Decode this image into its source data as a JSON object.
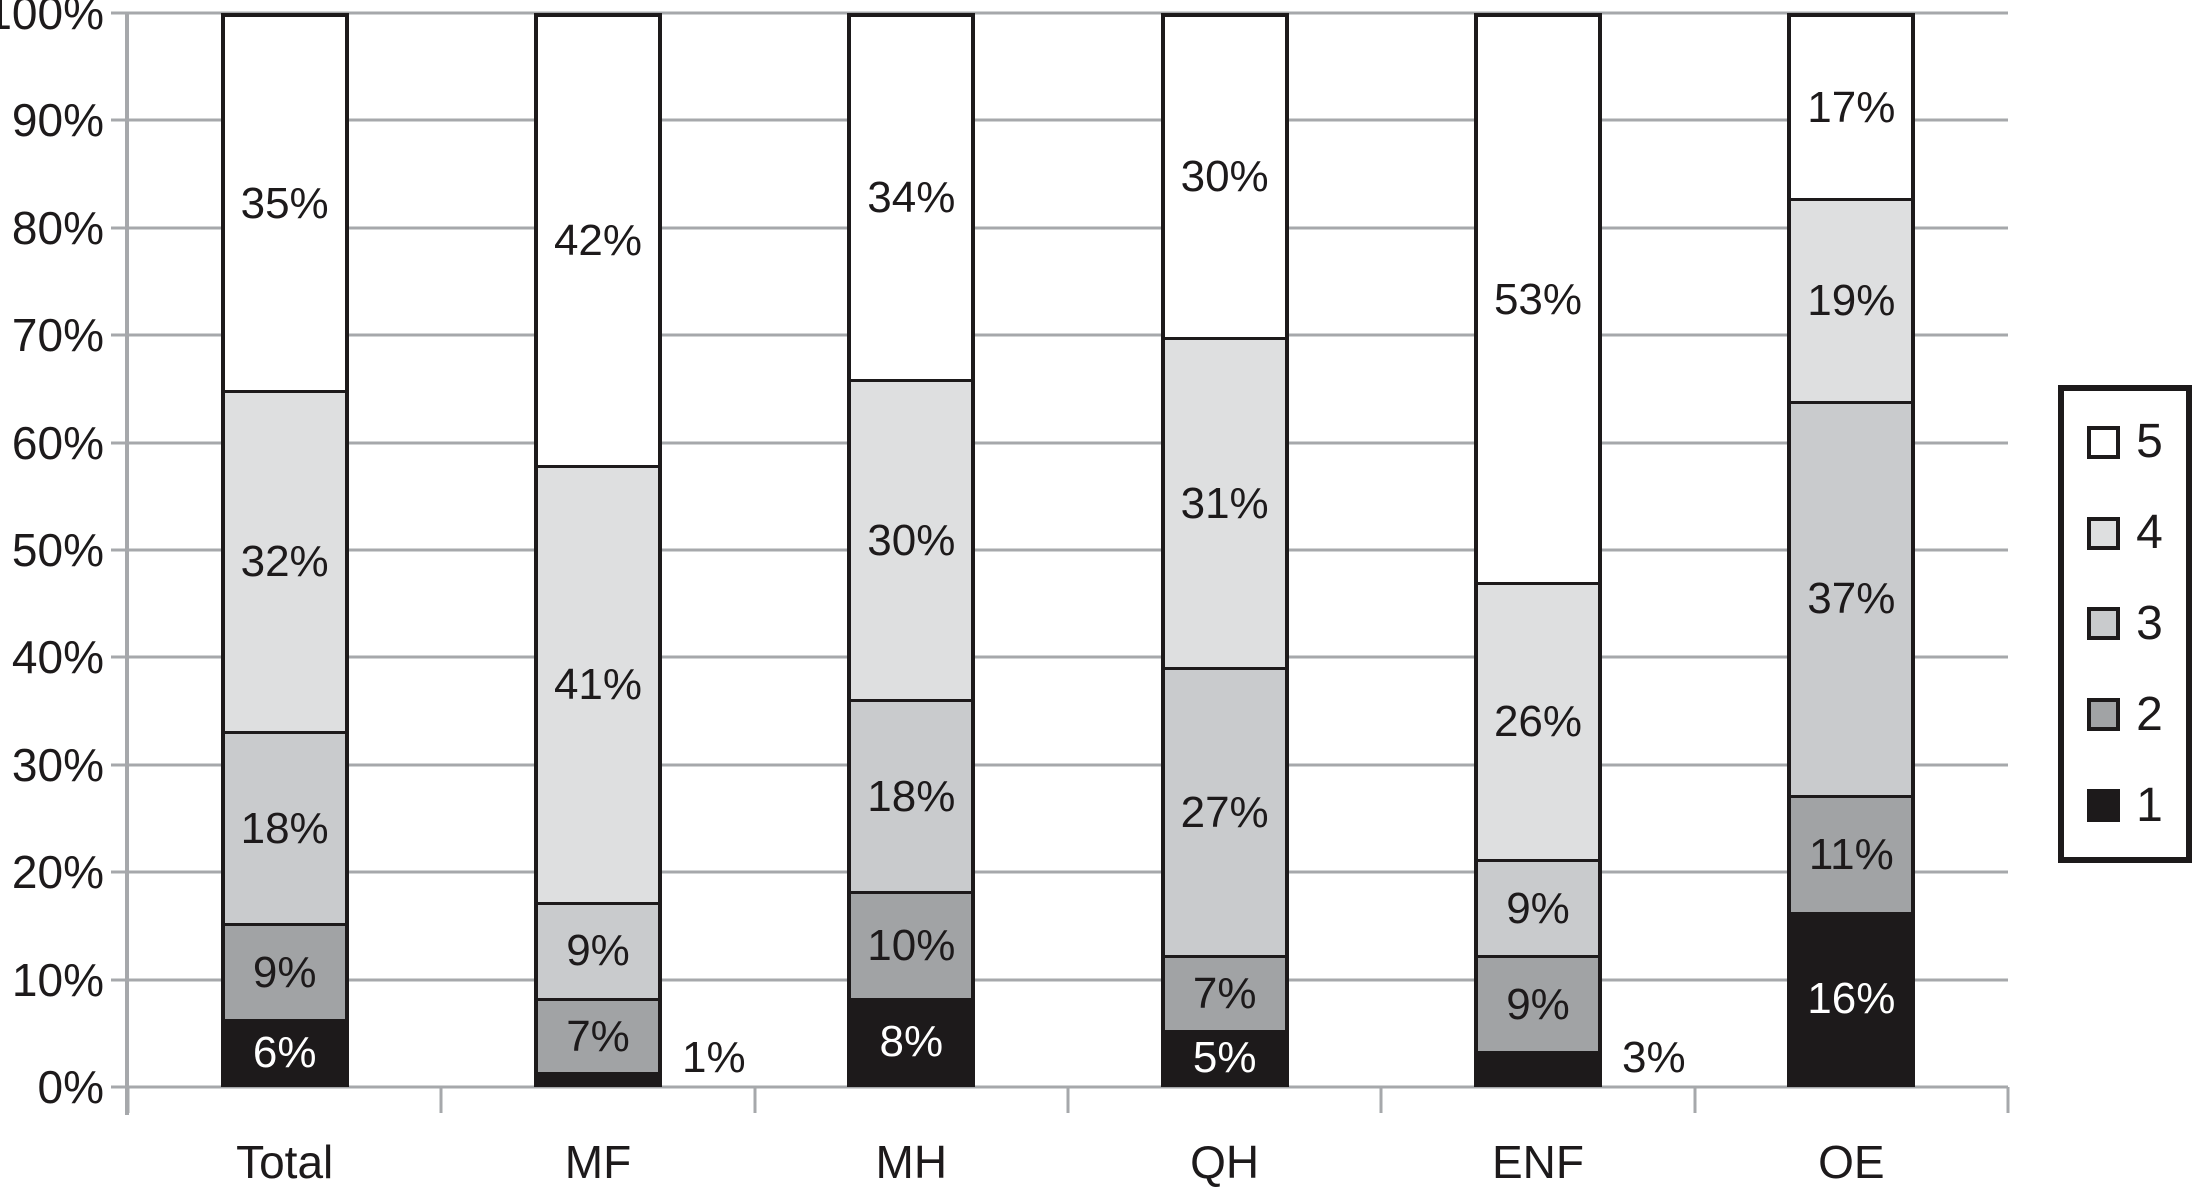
{
  "chart_data": {
    "type": "bar",
    "stacked": true,
    "percent": true,
    "title": "",
    "xlabel": "",
    "ylabel": "",
    "categories": [
      "Total",
      "MF",
      "MH",
      "QH",
      "ENF",
      "OE"
    ],
    "series": [
      {
        "name": "1",
        "color": "#1d1a1b",
        "text_color": "#ffffff",
        "values": [
          6,
          1,
          8,
          5,
          3,
          16
        ],
        "label_outside": [
          false,
          true,
          false,
          false,
          true,
          false
        ]
      },
      {
        "name": "2",
        "color": "#a1a3a5",
        "text_color": "#1d1a1b",
        "values": [
          9,
          7,
          10,
          7,
          9,
          11
        ],
        "label_outside": [
          false,
          false,
          false,
          false,
          false,
          false
        ]
      },
      {
        "name": "3",
        "color": "#c9cbcd",
        "text_color": "#1d1a1b",
        "values": [
          18,
          9,
          18,
          27,
          9,
          37
        ],
        "label_outside": [
          false,
          false,
          false,
          false,
          false,
          false
        ]
      },
      {
        "name": "4",
        "color": "#dedfe0",
        "text_color": "#1d1a1b",
        "values": [
          32,
          41,
          30,
          31,
          26,
          19
        ],
        "label_outside": [
          false,
          false,
          false,
          false,
          false,
          false
        ]
      },
      {
        "name": "5",
        "color": "#ffffff",
        "text_color": "#1d1a1b",
        "values": [
          35,
          42,
          34,
          30,
          53,
          17
        ],
        "label_outside": [
          false,
          false,
          false,
          false,
          false,
          false
        ]
      }
    ],
    "y_axis": {
      "min": 0,
      "max": 100,
      "step": 10,
      "ticks": [
        "0%",
        "10%",
        "20%",
        "30%",
        "40%",
        "50%",
        "60%",
        "70%",
        "80%",
        "90%",
        "100%"
      ],
      "grid": true
    },
    "legend": {
      "position": "right",
      "entries": [
        "5",
        "4",
        "3",
        "2",
        "1"
      ]
    },
    "colors": {
      "grid": "#a6a8ab",
      "border": "#1d1a1b",
      "background": "#ffffff"
    }
  }
}
